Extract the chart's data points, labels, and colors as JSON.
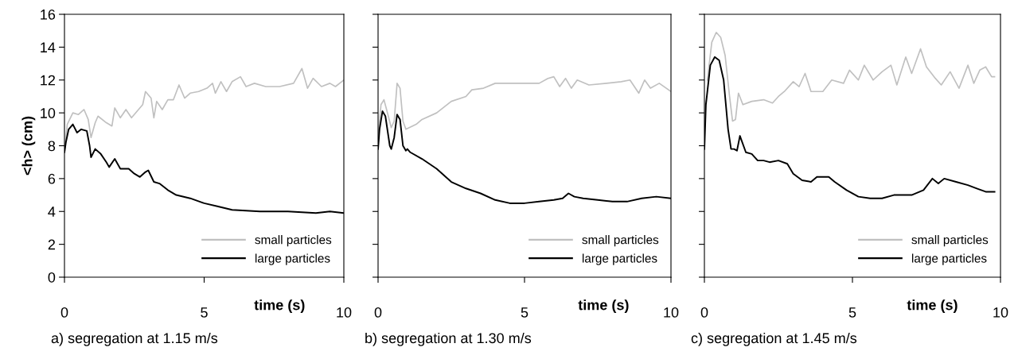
{
  "chart_data": [
    {
      "type": "line",
      "xlabel": "time (s)",
      "ylabel": "<h> (cm)",
      "xlim": [
        0,
        10
      ],
      "xticks": [
        0,
        5,
        10
      ],
      "ylim": [
        0,
        16
      ],
      "yticks": [
        0,
        2,
        4,
        6,
        8,
        10,
        12,
        14,
        16
      ],
      "legend": "bottom right",
      "annotations": [
        "a) segregation at 1.15 m/s"
      ],
      "series": [
        {
          "name": "small particles",
          "color": "#c0c0c0",
          "x": [
            0,
            0.1,
            0.3,
            0.5,
            0.7,
            0.85,
            0.95,
            1.1,
            1.2,
            1.5,
            1.7,
            1.8,
            2.0,
            2.2,
            2.4,
            2.6,
            2.8,
            2.9,
            3.1,
            3.2,
            3.3,
            3.5,
            3.7,
            3.9,
            4.1,
            4.3,
            4.5,
            4.8,
            5.1,
            5.3,
            5.4,
            5.6,
            5.8,
            6.0,
            6.3,
            6.5,
            6.8,
            7.2,
            7.7,
            8.2,
            8.5,
            8.7,
            8.9,
            9.2,
            9.5,
            9.7,
            10
          ],
          "values": [
            7.6,
            9.3,
            10.0,
            9.9,
            10.2,
            9.6,
            8.5,
            9.4,
            9.8,
            9.4,
            9.2,
            10.3,
            9.7,
            10.2,
            9.7,
            10.1,
            10.5,
            11.3,
            10.9,
            9.7,
            10.7,
            10.2,
            10.8,
            10.8,
            11.7,
            10.9,
            11.2,
            11.3,
            11.5,
            11.8,
            11.2,
            11.9,
            11.3,
            11.9,
            12.2,
            11.6,
            11.8,
            11.6,
            11.6,
            11.8,
            12.7,
            11.5,
            12.1,
            11.6,
            11.8,
            11.6,
            12.0
          ]
        },
        {
          "name": "large particles",
          "color": "#000000",
          "x": [
            0,
            0.05,
            0.15,
            0.3,
            0.45,
            0.6,
            0.8,
            0.9,
            0.95,
            1.1,
            1.3,
            1.5,
            1.6,
            1.8,
            2.0,
            2.3,
            2.5,
            2.7,
            2.9,
            3.0,
            3.2,
            3.4,
            3.7,
            4.0,
            4.5,
            5.0,
            5.5,
            6.0,
            6.5,
            7,
            8,
            8.5,
            9,
            9.5,
            10
          ],
          "values": [
            7.6,
            8.2,
            9.0,
            9.3,
            8.8,
            9.0,
            8.9,
            8.0,
            7.3,
            7.8,
            7.5,
            7.0,
            6.7,
            7.2,
            6.6,
            6.6,
            6.3,
            6.1,
            6.4,
            6.5,
            5.8,
            5.7,
            5.3,
            5.0,
            4.8,
            4.5,
            4.3,
            4.1,
            4.05,
            4.0,
            4.0,
            3.95,
            3.9,
            4.0,
            3.9
          ]
        }
      ]
    },
    {
      "type": "line",
      "xlabel": "time (s)",
      "xlim": [
        0,
        10
      ],
      "xticks": [
        0,
        5,
        10
      ],
      "ylim": [
        0,
        16
      ],
      "yticks": [
        0,
        2,
        4,
        6,
        8,
        10,
        12,
        14,
        16
      ],
      "tick_labels": "x",
      "legend": "bottom right",
      "annotations": [
        "b) segregation at 1.30 m/s"
      ],
      "series": [
        {
          "name": "small particles",
          "color": "#c0c0c0",
          "x": [
            0,
            0.1,
            0.2,
            0.35,
            0.45,
            0.55,
            0.65,
            0.75,
            0.85,
            0.95,
            1.3,
            1.5,
            2.0,
            2.5,
            3.0,
            3.2,
            3.6,
            4.0,
            4.5,
            5.0,
            5.5,
            5.8,
            6.0,
            6.2,
            6.4,
            6.6,
            6.8,
            7.2,
            7.8,
            8.3,
            8.6,
            8.9,
            9.1,
            9.3,
            9.6,
            10
          ],
          "values": [
            8.5,
            10.5,
            10.8,
            9.8,
            9.1,
            9.5,
            11.8,
            11.5,
            9.5,
            9.0,
            9.3,
            9.6,
            10.0,
            10.7,
            11.0,
            11.4,
            11.5,
            11.8,
            11.8,
            11.8,
            11.8,
            12.1,
            12.2,
            11.6,
            12.1,
            11.5,
            12.0,
            11.7,
            11.8,
            11.9,
            12.0,
            11.2,
            12.0,
            11.5,
            11.8,
            11.3
          ]
        },
        {
          "name": "large particles",
          "color": "#000000",
          "x": [
            0,
            0.05,
            0.15,
            0.25,
            0.4,
            0.45,
            0.55,
            0.65,
            0.75,
            0.85,
            0.95,
            1.0,
            1.1,
            1.5,
            2.0,
            2.5,
            3.0,
            3.5,
            4.0,
            4.5,
            5,
            5.5,
            6,
            6.3,
            6.5,
            6.7,
            7,
            7.5,
            8,
            8.5,
            9,
            9.5,
            10
          ],
          "values": [
            7.8,
            9.0,
            10.1,
            9.8,
            8.0,
            7.8,
            8.5,
            9.9,
            9.6,
            8.0,
            7.7,
            7.8,
            7.6,
            7.2,
            6.6,
            5.8,
            5.4,
            5.1,
            4.7,
            4.5,
            4.5,
            4.6,
            4.7,
            4.8,
            5.1,
            4.9,
            4.8,
            4.7,
            4.6,
            4.6,
            4.8,
            4.9,
            4.8
          ]
        }
      ]
    },
    {
      "type": "line",
      "xlabel": "time (s)",
      "xlim": [
        0,
        10
      ],
      "xticks": [
        0,
        5,
        10
      ],
      "ylim": [
        0,
        16
      ],
      "yticks": [
        0,
        2,
        4,
        6,
        8,
        10,
        12,
        14,
        16
      ],
      "tick_labels": "x",
      "legend": "bottom right",
      "annotations": [
        "c) segregation at 1.45 m/s"
      ],
      "series": [
        {
          "name": "small particles",
          "color": "#c0c0c0",
          "x": [
            0.1,
            0.25,
            0.4,
            0.55,
            0.7,
            0.85,
            0.95,
            1.05,
            1.15,
            1.3,
            1.6,
            2.0,
            2.3,
            2.5,
            2.7,
            3.0,
            3.2,
            3.4,
            3.6,
            4.0,
            4.3,
            4.7,
            4.9,
            5.2,
            5.4,
            5.7,
            6.0,
            6.3,
            6.5,
            6.8,
            7.0,
            7.3,
            7.5,
            7.8,
            8.0,
            8.3,
            8.6,
            8.9,
            9.1,
            9.3,
            9.5,
            9.7,
            9.8
          ],
          "values": [
            12.0,
            14.3,
            14.9,
            14.6,
            13.5,
            11.0,
            9.5,
            9.6,
            11.2,
            10.5,
            10.7,
            10.8,
            10.6,
            11.0,
            11.3,
            11.9,
            11.6,
            12.4,
            11.3,
            11.3,
            12.0,
            11.8,
            12.6,
            12.0,
            12.9,
            12.0,
            12.5,
            12.9,
            11.7,
            13.4,
            12.4,
            13.9,
            12.8,
            12.1,
            11.7,
            12.5,
            11.5,
            12.9,
            11.8,
            12.6,
            12.8,
            12.2,
            12.2
          ]
        },
        {
          "name": "large particles",
          "color": "#000000",
          "x": [
            0,
            0.05,
            0.2,
            0.35,
            0.5,
            0.65,
            0.8,
            0.9,
            1.0,
            1.1,
            1.2,
            1.4,
            1.6,
            1.8,
            2.0,
            2.2,
            2.5,
            2.8,
            3.0,
            3.3,
            3.6,
            3.8,
            4.2,
            4.4,
            4.8,
            5.2,
            5.6,
            6.0,
            6.4,
            7.0,
            7.4,
            7.7,
            7.9,
            8.1,
            8.5,
            8.9,
            9.2,
            9.5,
            9.8
          ],
          "values": [
            7.8,
            10.5,
            12.9,
            13.4,
            13.2,
            12.0,
            9.0,
            7.8,
            7.8,
            7.7,
            8.6,
            7.6,
            7.5,
            7.1,
            7.1,
            7.0,
            7.1,
            6.9,
            6.3,
            5.9,
            5.8,
            6.1,
            6.1,
            5.8,
            5.3,
            4.9,
            4.8,
            4.8,
            5.0,
            5.0,
            5.3,
            6.0,
            5.7,
            6.0,
            5.8,
            5.6,
            5.4,
            5.2,
            5.2
          ]
        }
      ]
    }
  ]
}
